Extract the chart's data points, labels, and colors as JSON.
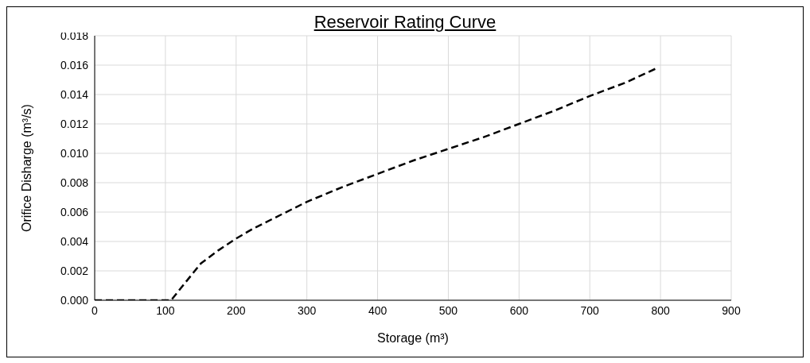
{
  "chart_data": {
    "type": "line",
    "title": "Reservoir Rating Curve",
    "xlabel": "Storage (m³)",
    "ylabel": "Orifice Disharge (m³/s)",
    "x": [
      0,
      50,
      100,
      108,
      150,
      175,
      200,
      225,
      250,
      300,
      350,
      400,
      450,
      500,
      550,
      600,
      650,
      700,
      750,
      795
    ],
    "series": [
      {
        "color": "#000000",
        "line_style": "dashed",
        "values": [
          0,
          0,
          0,
          0,
          0.0025,
          0.0034,
          0.0042,
          0.0049,
          0.0055,
          0.0067,
          0.0077,
          0.0086,
          0.0095,
          0.0103,
          0.0111,
          0.012,
          0.0129,
          0.0139,
          0.0148,
          0.0158
        ]
      }
    ],
    "xlim": [
      0,
      900
    ],
    "xticks": [
      0,
      100,
      200,
      300,
      400,
      500,
      600,
      700,
      800,
      900
    ],
    "ylim": [
      0,
      0.018
    ],
    "yticks": [
      {
        "value": 0,
        "label": "0.000"
      },
      {
        "value": 0.002,
        "label": "0.002"
      },
      {
        "value": 0.004,
        "label": "0.004"
      },
      {
        "value": 0.006,
        "label": "0.006"
      },
      {
        "value": 0.008,
        "label": "0.008"
      },
      {
        "value": 0.01,
        "label": "0.010"
      },
      {
        "value": 0.012,
        "label": "0.012"
      },
      {
        "value": 0.014,
        "label": "0.014"
      },
      {
        "value": 0.016,
        "label": "0.016"
      },
      {
        "value": 0.018,
        "label": "0.018"
      }
    ],
    "grid": true,
    "marker": "none"
  }
}
